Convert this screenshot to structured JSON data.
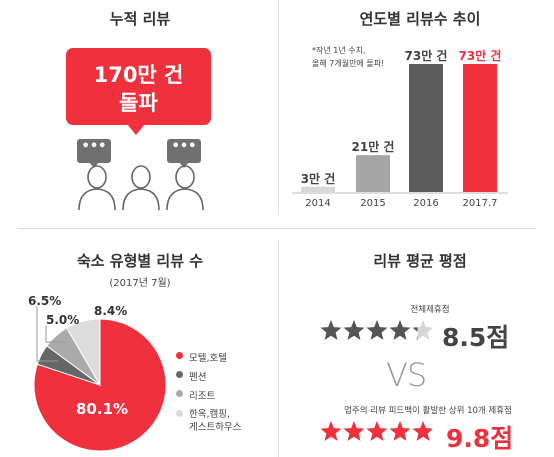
{
  "colors": {
    "red": "#f0303c",
    "dark_gray": "#666666",
    "mid_gray": "#999999",
    "light_gray": "#bbbbbb",
    "pale_gray": "#e8e8e8"
  },
  "cumulative": {
    "title": "누적 리뷰",
    "line1": "170만 건",
    "line2": "돌파",
    "bubble_dots": "•••"
  },
  "yearly": {
    "title": "연도별 리뷰수 추이",
    "note_line1": "*작년 1년 수치,",
    "note_line2": "올해 7개월만에 돌파!"
  },
  "type": {
    "title": "숙소 유형별 리뷰 수",
    "subtitle": "(2017년 7월)",
    "legend": [
      {
        "label": "모텔,호텔",
        "color": "#f0303c"
      },
      {
        "label": "펜션",
        "color": "#666666"
      },
      {
        "label": "리조트",
        "color": "#aaaaaa"
      },
      {
        "label_line1": "한옥,캠핑,",
        "label_line2": "게스트하우스",
        "color": "#dcdcdc"
      }
    ],
    "labels": {
      "motel": "80.1%",
      "pension": "5.0%",
      "resort": "6.5%",
      "other": "8.4%"
    }
  },
  "rating": {
    "title": "리뷰 평균 평점",
    "all_caption": "전체제휴점",
    "all_score": "8.5점",
    "vs": "VS",
    "top_caption": "업주의 리뷰 피드백이 활발한 상위 10개 제휴점",
    "top_score": "9.8점",
    "all_stars": 4.25,
    "top_stars": 4.9
  },
  "chart_data": [
    {
      "type": "bar",
      "categories": [
        "2014",
        "2015",
        "2016",
        "2017.7"
      ],
      "values": [
        3,
        21,
        73,
        73
      ],
      "value_labels": [
        "3만 건",
        "21만 건",
        "73만 건",
        "73만 건"
      ],
      "colors": [
        "#d8d8d8",
        "#a6a6a6",
        "#5c5c5c",
        "#f0303c"
      ],
      "title": "연도별 리뷰수 추이"
    },
    {
      "type": "pie",
      "categories": [
        "모텔,호텔",
        "펜션",
        "리조트",
        "한옥,캠핑,게스트하우스"
      ],
      "values": [
        80.1,
        5.0,
        6.5,
        8.4
      ],
      "title": "숙소 유형별 리뷰 수"
    }
  ]
}
